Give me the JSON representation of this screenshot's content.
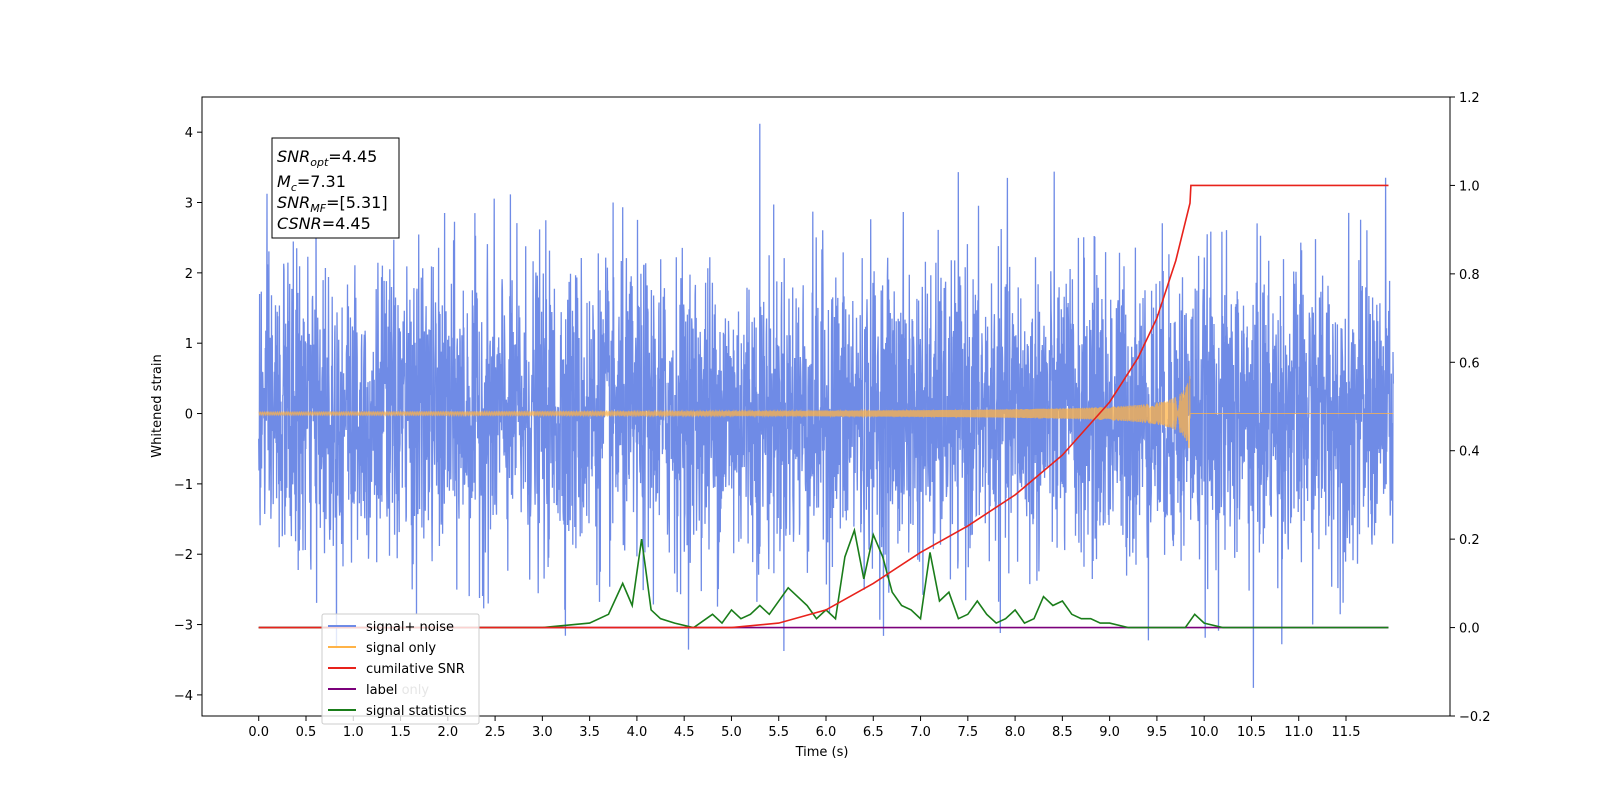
{
  "chart_data": {
    "type": "line",
    "xlabel": "Time (s)",
    "ylabel": "Whitened strain",
    "xlim": [
      -0.6,
      12.6
    ],
    "ylim": [
      -4.3,
      4.5
    ],
    "y2lim": [
      -0.2,
      1.2
    ],
    "x_ticks": [
      "0.0",
      "0.5",
      "1.0",
      "1.5",
      "2.0",
      "2.5",
      "3.0",
      "3.5",
      "4.0",
      "4.5",
      "5.0",
      "5.5",
      "6.0",
      "6.5",
      "7.0",
      "7.5",
      "8.0",
      "8.5",
      "9.0",
      "9.5",
      "10.0",
      "10.5",
      "11.0",
      "11.5"
    ],
    "y_ticks": [
      4,
      3,
      2,
      1,
      0,
      -1,
      -2,
      -3,
      -4
    ],
    "y_tick_labels": [
      "4",
      "3",
      "2",
      "1",
      "0",
      "−1",
      "−2",
      "−3",
      "−4"
    ],
    "y2_ticks": [
      1.2,
      1.0,
      0.8,
      0.6,
      0.4,
      0.2,
      0.0,
      -0.2
    ],
    "y2_tick_labels": [
      "1.2",
      "1.0",
      "0.8",
      "0.6",
      "0.4",
      "0.2",
      "0.0",
      "−0.2"
    ],
    "series": [
      {
        "name": "signal+ noise",
        "color": "#6f8be6",
        "axis": "left",
        "description": "white noise, amplitude ~±3, spikes to 4.1 near t=5.3 and -3.9 near t=10.5",
        "t_range": [
          0.0,
          12.0
        ]
      },
      {
        "name": "signal only",
        "color": "#ffb347",
        "axis": "left",
        "description": "chirp growing from 0 to ~±0.5 at t=9.85, then 0",
        "t_range": [
          0.0,
          12.0
        ],
        "merger_time": 9.85,
        "peak_amplitude": 0.55
      },
      {
        "name": "cumilative SNR",
        "color": "#e8221b",
        "axis": "right",
        "x": [
          0.0,
          5.0,
          5.5,
          6.0,
          6.5,
          7.0,
          7.5,
          8.0,
          8.5,
          9.0,
          9.3,
          9.5,
          9.7,
          9.85,
          9.86,
          11.95
        ],
        "y": [
          0.0,
          0.0,
          0.01,
          0.04,
          0.1,
          0.17,
          0.23,
          0.3,
          0.39,
          0.51,
          0.61,
          0.7,
          0.83,
          0.96,
          1.0,
          1.0
        ]
      },
      {
        "name": "label",
        "color": "#7b007b",
        "axis": "right",
        "x": [
          0.0,
          11.95
        ],
        "y": [
          0.0,
          0.0
        ]
      },
      {
        "name": "label only",
        "color": "#f0f0f0",
        "axis": "right",
        "x": [
          0.0,
          11.95
        ],
        "y": [
          0.0,
          0.0
        ]
      },
      {
        "name": "signal statistics",
        "color": "#1a7d1a",
        "axis": "right",
        "x": [
          0.0,
          3.0,
          3.5,
          3.7,
          3.85,
          3.95,
          4.05,
          4.1,
          4.15,
          4.25,
          4.4,
          4.6,
          4.8,
          4.9,
          5.0,
          5.1,
          5.2,
          5.3,
          5.4,
          5.6,
          5.8,
          5.9,
          6.0,
          6.1,
          6.2,
          6.3,
          6.4,
          6.5,
          6.6,
          6.7,
          6.8,
          6.9,
          7.0,
          7.1,
          7.2,
          7.3,
          7.4,
          7.5,
          7.6,
          7.7,
          7.8,
          7.9,
          8.0,
          8.1,
          8.2,
          8.3,
          8.4,
          8.5,
          8.6,
          8.7,
          8.8,
          8.9,
          9.0,
          9.2,
          9.5,
          9.8,
          9.9,
          10.0,
          10.2,
          10.5,
          10.7,
          11.95
        ],
        "y": [
          0.0,
          0.0,
          0.01,
          0.03,
          0.1,
          0.05,
          0.2,
          0.12,
          0.04,
          0.02,
          0.01,
          0.0,
          0.03,
          0.01,
          0.04,
          0.02,
          0.03,
          0.05,
          0.03,
          0.09,
          0.05,
          0.02,
          0.04,
          0.02,
          0.16,
          0.22,
          0.11,
          0.21,
          0.16,
          0.08,
          0.05,
          0.04,
          0.02,
          0.17,
          0.06,
          0.08,
          0.02,
          0.03,
          0.06,
          0.03,
          0.01,
          0.02,
          0.04,
          0.01,
          0.02,
          0.07,
          0.05,
          0.06,
          0.03,
          0.02,
          0.02,
          0.01,
          0.01,
          0.0,
          0.0,
          0.0,
          0.03,
          0.01,
          0.0,
          0.0,
          0.0,
          0.0
        ]
      }
    ]
  },
  "stats_box": {
    "snr_opt_base": "SNR",
    "snr_opt_sub": "opt",
    "snr_opt_value": "=4.45",
    "mc_base": "M",
    "mc_sub": "c",
    "mc_value": "=7.31",
    "snr_mf_base": "SNR",
    "snr_mf_sub": "MF",
    "snr_mf_value": "=[5.31]",
    "csnr_base": "CSNR",
    "csnr_value": "=4.45"
  }
}
